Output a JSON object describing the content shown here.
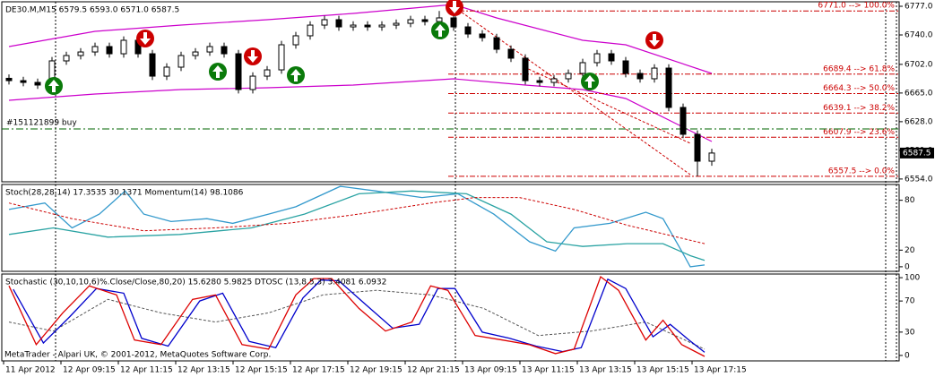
{
  "chart_data": [
    {
      "type": "candlestick",
      "title": "DE30.M,M15  6579.5 6593.0 6571.0 6587.5",
      "categories": [
        "11 Apr 2012",
        null,
        null,
        null,
        "12 Apr 09:15",
        null,
        null,
        null,
        "12 Apr 11:15",
        null,
        null,
        null,
        "12 Apr 13:15",
        null,
        null,
        null,
        "12 Apr 15:15",
        null,
        null,
        null,
        "12 Apr 17:15",
        null,
        null,
        null,
        "12 Apr 19:15",
        null,
        null,
        null,
        "12 Apr 21:15",
        null,
        null,
        null,
        "13 Apr 09:15",
        null,
        null,
        null,
        "13 Apr 11:15",
        null,
        null,
        null,
        "13 Apr 13:15",
        null,
        null,
        null,
        "13 Apr 15:15",
        null,
        null,
        null,
        "13 Apr 17:15",
        null
      ],
      "open": [
        6684.0,
        6681.0,
        6678.7,
        6675.3,
        6706.5,
        6713.4,
        6718.0,
        6725.0,
        6715.7,
        6733.1,
        6715.7,
        6686.8,
        6698.4,
        6713.4,
        6718.0,
        6725.0,
        6715.7,
        6669.5,
        6686.8,
        6694.9,
        6727.3,
        6738.9,
        6752.7,
        6759.7,
        6750.4,
        6752.7,
        6750.4,
        6752.7,
        6755.0,
        6759.7,
        6757.3,
        6762.0,
        6750.4,
        6741.2,
        6736.5,
        6721.5,
        6710.0,
        6681.0,
        6678.7,
        6683.4,
        6690.3,
        6704.2,
        6715.7,
        6706.5,
        6690.3,
        6683.4,
        6697.2,
        6646.4,
        6611.7,
        6577.0
      ],
      "high": [
        6689.0,
        6686.0,
        6683.7,
        6711.5,
        6718.4,
        6723.0,
        6730.0,
        6730.0,
        6738.1,
        6738.1,
        6720.7,
        6703.4,
        6718.4,
        6723.0,
        6730.0,
        6730.0,
        6720.7,
        6691.8,
        6699.9,
        6732.3,
        6743.9,
        6757.7,
        6764.7,
        6764.7,
        6757.7,
        6757.7,
        6757.7,
        6760.0,
        6764.7,
        6764.7,
        6771.0,
        6767.0,
        6755.4,
        6746.2,
        6741.5,
        6726.5,
        6715.0,
        6686.0,
        6688.4,
        6695.3,
        6709.2,
        6720.7,
        6720.7,
        6711.5,
        6695.3,
        6702.2,
        6702.2,
        6651.4,
        6616.7,
        6593.0
      ],
      "low": [
        6676.0,
        6673.7,
        6670.3,
        6670.3,
        6701.5,
        6708.4,
        6713.0,
        6710.7,
        6710.7,
        6710.7,
        6681.8,
        6681.8,
        6693.4,
        6708.4,
        6713.0,
        6710.7,
        6664.5,
        6664.5,
        6681.8,
        6689.9,
        6722.3,
        6733.9,
        6747.7,
        6745.4,
        6745.4,
        6745.4,
        6745.4,
        6747.7,
        6750.0,
        6752.3,
        6752.3,
        6745.4,
        6736.2,
        6731.5,
        6716.5,
        6705.0,
        6676.0,
        6673.7,
        6673.7,
        6678.4,
        6685.3,
        6699.2,
        6701.5,
        6685.3,
        6678.4,
        6678.4,
        6641.4,
        6606.7,
        6557.5,
        6571.0
      ],
      "close": [
        6681.0,
        6678.7,
        6675.3,
        6706.5,
        6713.4,
        6718.0,
        6725.0,
        6715.7,
        6733.1,
        6715.7,
        6686.8,
        6698.4,
        6713.4,
        6718.0,
        6725.0,
        6715.7,
        6669.5,
        6686.8,
        6694.9,
        6727.3,
        6738.9,
        6752.7,
        6759.7,
        6750.4,
        6752.7,
        6750.4,
        6752.7,
        6755.0,
        6759.7,
        6757.3,
        6762.0,
        6750.4,
        6741.2,
        6736.5,
        6721.5,
        6710.0,
        6681.0,
        6678.7,
        6683.4,
        6690.3,
        6704.2,
        6715.7,
        6706.5,
        6690.3,
        6683.4,
        6697.2,
        6646.4,
        6611.7,
        6577.0,
        6587.5
      ],
      "up_color": "#ffffff",
      "down_color": "#000000",
      "bands": {
        "color": "#cc00cc",
        "upper_x": [
          0,
          6,
          12,
          18,
          24,
          31,
          34,
          40,
          43,
          49
        ],
        "upper": [
          6725.0,
          6744.6,
          6752.7,
          6759.7,
          6767.8,
          6779.3,
          6762.0,
          6733.1,
          6727.3,
          6690.3
        ],
        "lower_x": [
          0,
          6,
          12,
          18,
          24,
          31,
          36,
          40,
          43,
          49
        ],
        "lower": [
          6655.6,
          6663.7,
          6669.5,
          6671.8,
          6675.3,
          6683.4,
          6675.3,
          6669.5,
          6657.9,
          6602.4
        ]
      },
      "levels": [
        {
          "value": 6771.0,
          "label": "6771.0 --> 100.0%"
        },
        {
          "value": 6689.4,
          "label": "6689.4 --> 61.8%"
        },
        {
          "value": 6664.3,
          "label": "6664.3 --> 50.0%"
        },
        {
          "value": 6639.1,
          "label": "6639.1 --> 38.2%"
        },
        {
          "value": 6607.9,
          "label": "6607.9 --> 23.6%"
        },
        {
          "value": 6557.5,
          "label": "6557.5 --> 0.0%"
        }
      ],
      "level_color": "#cc0000",
      "order_line": {
        "value": 6618.6,
        "label": "#151121899 buy",
        "color": "#006600"
      },
      "last_price": {
        "value": 6587.5,
        "label": "6587.5"
      },
      "ylim": [
        6550.4,
        6782.8
      ],
      "yticks": [
        {
          "value": 6777,
          "label": "6777.0"
        },
        {
          "value": 6740,
          "label": "6740.0"
        },
        {
          "value": 6702,
          "label": "6702.0"
        },
        {
          "value": 6665,
          "label": "6665.0"
        },
        {
          "value": 6628,
          "label": "6628.0"
        },
        {
          "value": 6591,
          "label": "6591.0"
        },
        {
          "value": 6554,
          "label": "6554.0"
        }
      ]
    },
    {
      "type": "line",
      "title": "Stoch(28,28,14) 17.3535 30.1371 Momentum(14) 98.1086",
      "ylim": [
        -5.5,
        99
      ],
      "yticks": [
        80,
        20,
        0
      ],
      "series": [
        {
          "color": "#3399cc",
          "dashed": false,
          "x": [
            0,
            2.5,
            4.4,
            6.3,
            8.1,
            9.4,
            11.3,
            13.8,
            15.6,
            18.1,
            20,
            23.1,
            25.6,
            28.8,
            31.3,
            33.8,
            36.3,
            38.1,
            39.4,
            41.9,
            44.4,
            45.6,
            46.9,
            47.5,
            48.5
          ],
          "values": [
            68.9,
            76.7,
            46.7,
            63.3,
            91.1,
            63.3,
            54.4,
            57.8,
            52.2,
            63.3,
            72.2,
            96.7,
            91.1,
            83.3,
            87.8,
            63.3,
            30,
            18.9,
            46.7,
            52.2,
            65.6,
            57.8,
            18.9,
            0,
            2.2
          ]
        },
        {
          "color": "#2aa3a3",
          "dashed": false,
          "x": [
            0,
            3.1,
            6.9,
            11.9,
            16.9,
            20.6,
            24.4,
            28.1,
            31.9,
            35,
            37.5,
            40,
            43.1,
            45.6,
            47.5,
            48.5
          ],
          "values": [
            38.9,
            46.7,
            35.6,
            38.9,
            46.7,
            63.3,
            87.8,
            91.1,
            87.8,
            63.3,
            30,
            24.4,
            27.8,
            27.8,
            13.3,
            7.8
          ]
        },
        {
          "color": "#cc0000",
          "dashed": true,
          "x": [
            0,
            4.4,
            9.4,
            14.4,
            19.4,
            24.4,
            29.4,
            32.5,
            35.6,
            39.4,
            43.1,
            48.5
          ],
          "values": [
            76.7,
            57.8,
            43.3,
            46.7,
            52.2,
            63.3,
            76.7,
            83.3,
            83.3,
            68.9,
            50,
            27.8
          ]
        }
      ]
    },
    {
      "type": "line",
      "title": "Stochastic (30,10,10,6)%.Close/Close,80,20) 15.6280 5.9825  DTOSC (13,8,5,3) 3.4081 6.0932",
      "footer": "MetaTrader - Alpari UK, © 2001-2012, MetaQuotes Software Corp.",
      "ylim": [
        -7,
        104.7
      ],
      "yticks": [
        100,
        70,
        30,
        0
      ],
      "series": [
        {
          "color": "#555555",
          "dashed": true,
          "x": [
            0,
            3.1,
            6.9,
            10.6,
            14.4,
            18.1,
            21.9,
            25.6,
            29.4,
            33.1,
            36.9,
            40.6,
            44.4,
            48.5
          ],
          "values": [
            43,
            31.4,
            72.1,
            54.7,
            43,
            54.7,
            77.9,
            83.7,
            77.9,
            60.5,
            25.6,
            31.4,
            43,
            8.1
          ]
        },
        {
          "color": "#0000cc",
          "dashed": false,
          "x": [
            0.3,
            2.4,
            4.25,
            6.1,
            8,
            9.25,
            11.1,
            13.3,
            14.9,
            16.75,
            18.6,
            20.5,
            21.75,
            23,
            24.9,
            26.75,
            28.6,
            29.9,
            31.1,
            33,
            34.9,
            36.75,
            38.6,
            39.9,
            41.75,
            43,
            44.9,
            46.1,
            47.4,
            48.5
          ],
          "values": [
            85,
            16,
            50,
            86,
            80,
            22,
            12,
            70,
            80,
            18,
            10,
            74,
            97,
            96,
            65,
            35,
            40,
            86,
            86,
            30,
            22,
            12,
            5,
            10,
            98,
            86,
            24,
            40,
            20,
            4
          ]
        },
        {
          "color": "#dd0000",
          "dashed": false,
          "x": [
            0,
            1.9,
            3.75,
            5.6,
            7.5,
            8.75,
            10.6,
            12.8,
            14.4,
            16.25,
            18.1,
            20,
            21.25,
            22.5,
            24.4,
            26.25,
            28.1,
            29.4,
            30.6,
            32.5,
            34.4,
            36.25,
            38.1,
            39.4,
            41.25,
            42.5,
            44.4,
            45.6,
            46.9,
            48.5
          ],
          "values": [
            89.5,
            14,
            54.7,
            89.5,
            77.9,
            19.8,
            14,
            72.1,
            77.9,
            14,
            8.1,
            77.9,
            98.8,
            98.8,
            60.5,
            31.4,
            43,
            89.5,
            83.7,
            25.6,
            19.8,
            14,
            2.3,
            8.1,
            101.2,
            83.7,
            19.8,
            45.3,
            14,
            -1.2
          ]
        }
      ]
    }
  ]
}
